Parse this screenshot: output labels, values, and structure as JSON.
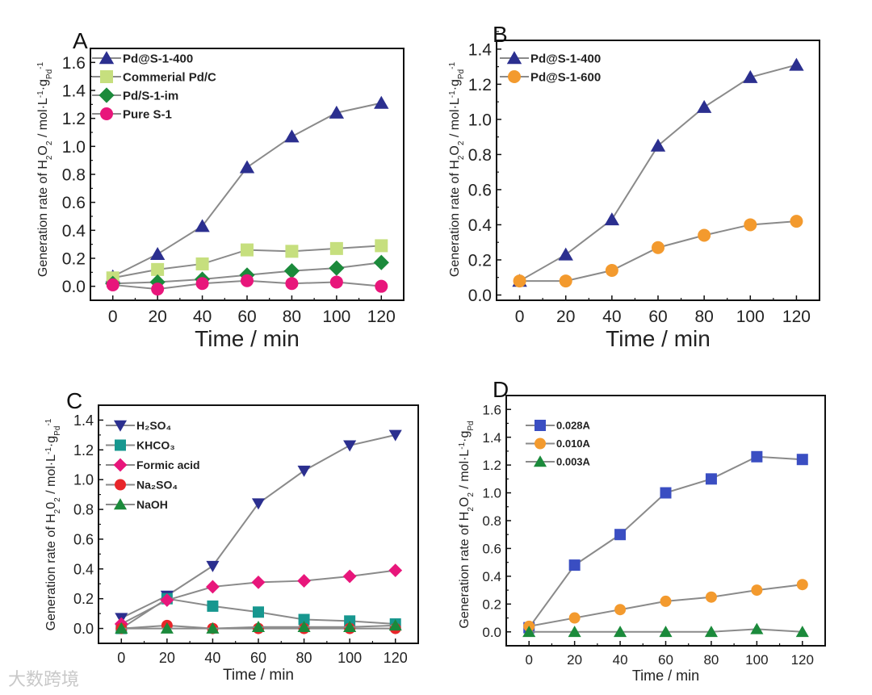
{
  "watermark": "大数跨境",
  "chart_data": [
    {
      "panel": "A",
      "type": "line",
      "xlabel": "Time / min",
      "ylabel_parts": [
        [
          "Generation rate of H",
          ""
        ],
        [
          "2",
          "sub"
        ],
        [
          "O",
          ""
        ],
        [
          "2",
          "sub"
        ],
        [
          " / mol·L",
          ""
        ],
        [
          "-1",
          "sup"
        ],
        [
          "·g",
          ""
        ],
        [
          "Pd",
          "sub"
        ],
        [
          "-1",
          "sup"
        ]
      ],
      "x": [
        0,
        20,
        40,
        60,
        80,
        100,
        120
      ],
      "xticks": [
        0,
        20,
        40,
        60,
        80,
        100,
        120
      ],
      "yticks": [
        0.0,
        0.2,
        0.4,
        0.6,
        0.8,
        1.0,
        1.2,
        1.4,
        1.6
      ],
      "ylim": [
        -0.1,
        1.7
      ],
      "xlim": [
        -10,
        130
      ],
      "legend_position": "top-left",
      "series": [
        {
          "name": "Pd@S-1-400",
          "marker": "triangle",
          "color": "#2b2f8f",
          "values": [
            0.07,
            0.23,
            0.43,
            0.85,
            1.07,
            1.24,
            1.31
          ]
        },
        {
          "name": "Commerial Pd/C",
          "marker": "square",
          "color": "#c6df7e",
          "values": [
            0.06,
            0.12,
            0.16,
            0.26,
            0.25,
            0.27,
            0.29
          ]
        },
        {
          "name": "Pd/S-1-im",
          "marker": "diamond",
          "color": "#1b8a3b",
          "values": [
            0.02,
            0.03,
            0.05,
            0.08,
            0.11,
            0.13,
            0.17
          ]
        },
        {
          "name": "Pure S-1",
          "marker": "circle",
          "color": "#e8167b",
          "values": [
            0.01,
            -0.02,
            0.02,
            0.04,
            0.02,
            0.03,
            0.0
          ]
        }
      ]
    },
    {
      "panel": "B",
      "type": "line",
      "xlabel": "Time / min",
      "ylabel_parts": [
        [
          "Generation rate of H",
          ""
        ],
        [
          "2",
          "sub"
        ],
        [
          "O",
          ""
        ],
        [
          "2",
          "sub"
        ],
        [
          " / mol·L",
          ""
        ],
        [
          "-1",
          "sup"
        ],
        [
          "·g",
          ""
        ],
        [
          "Pd",
          "sub"
        ],
        [
          "-1",
          "sup"
        ]
      ],
      "x": [
        0,
        20,
        40,
        60,
        80,
        100,
        120
      ],
      "xticks": [
        0,
        20,
        40,
        60,
        80,
        100,
        120
      ],
      "yticks": [
        0.0,
        0.2,
        0.4,
        0.6,
        0.8,
        1.0,
        1.2,
        1.4
      ],
      "ylim": [
        -0.03,
        1.45
      ],
      "xlim": [
        -10,
        130
      ],
      "legend_position": "top-left",
      "series": [
        {
          "name": "Pd@S-1-400",
          "marker": "triangle",
          "color": "#2b2f8f",
          "values": [
            0.08,
            0.23,
            0.43,
            0.85,
            1.07,
            1.24,
            1.31
          ]
        },
        {
          "name": "Pd@S-1-600",
          "marker": "circle",
          "color": "#f39a2e",
          "values": [
            0.08,
            0.08,
            0.14,
            0.27,
            0.34,
            0.4,
            0.42
          ]
        }
      ]
    },
    {
      "panel": "C",
      "type": "line",
      "xlabel": "Time / min",
      "ylabel_parts": [
        [
          "Generation rate of H",
          ""
        ],
        [
          "2",
          "sub"
        ],
        [
          "0",
          ""
        ],
        [
          "2",
          "sub"
        ],
        [
          " / mol·L",
          ""
        ],
        [
          "-1",
          "sup"
        ],
        [
          "·g",
          ""
        ],
        [
          "Pd",
          "sub"
        ],
        [
          "-1",
          "sup"
        ]
      ],
      "x": [
        0,
        20,
        40,
        60,
        80,
        100,
        120
      ],
      "xticks": [
        0,
        20,
        40,
        60,
        80,
        100,
        120
      ],
      "yticks": [
        0.0,
        0.2,
        0.4,
        0.6,
        0.8,
        1.0,
        1.2,
        1.4
      ],
      "ylim": [
        -0.1,
        1.5
      ],
      "xlim": [
        -10,
        130
      ],
      "legend_position": "top-left",
      "series": [
        {
          "name": "H₂SO₄",
          "marker": "triangle-down",
          "color": "#2b2f8f",
          "values": [
            0.07,
            0.22,
            0.42,
            0.84,
            1.06,
            1.23,
            1.3
          ]
        },
        {
          "name": "KHCO₃",
          "marker": "square",
          "color": "#17978f",
          "values": [
            0.0,
            0.2,
            0.15,
            0.11,
            0.06,
            0.05,
            0.03
          ]
        },
        {
          "name": "Formic acid",
          "marker": "diamond",
          "color": "#e8167b",
          "values": [
            0.03,
            0.19,
            0.28,
            0.31,
            0.32,
            0.35,
            0.39
          ]
        },
        {
          "name": "Na₂SO₄",
          "marker": "circle",
          "color": "#e8262a",
          "values": [
            0.0,
            0.02,
            0.0,
            0.0,
            0.0,
            0.0,
            0.0
          ]
        },
        {
          "name": "NaOH",
          "marker": "triangle",
          "color": "#1b8a3b",
          "values": [
            0.0,
            0.0,
            0.0,
            0.01,
            0.01,
            0.01,
            0.02
          ]
        }
      ]
    },
    {
      "panel": "D",
      "type": "line",
      "xlabel": "Time / min",
      "ylabel_parts": [
        [
          "Generation rate of H",
          ""
        ],
        [
          "2",
          "sub"
        ],
        [
          "O",
          ""
        ],
        [
          "2",
          "sub"
        ],
        [
          " / mol·L",
          ""
        ],
        [
          "-1",
          "sup"
        ],
        [
          "·g",
          ""
        ],
        [
          "Pd",
          "sub"
        ]
      ],
      "x": [
        0,
        20,
        40,
        60,
        80,
        100,
        120
      ],
      "xticks": [
        0,
        20,
        40,
        60,
        80,
        100,
        120
      ],
      "yticks": [
        0.0,
        0.2,
        0.4,
        0.6,
        0.8,
        1.0,
        1.2,
        1.4,
        1.6
      ],
      "ylim": [
        -0.1,
        1.7
      ],
      "xlim": [
        -10,
        130
      ],
      "legend_position": "top-left",
      "series": [
        {
          "name": "0.028A",
          "marker": "square",
          "color": "#3a4ec2",
          "values": [
            0.03,
            0.48,
            0.7,
            1.0,
            1.1,
            1.26,
            1.24
          ]
        },
        {
          "name": "0.010A",
          "marker": "circle",
          "color": "#f39a2e",
          "values": [
            0.04,
            0.1,
            0.16,
            0.22,
            0.25,
            0.3,
            0.34
          ]
        },
        {
          "name": "0.003A",
          "marker": "triangle",
          "color": "#1b8a3b",
          "values": [
            0.0,
            0.0,
            0.0,
            0.0,
            0.0,
            0.02,
            0.0
          ]
        }
      ]
    }
  ]
}
